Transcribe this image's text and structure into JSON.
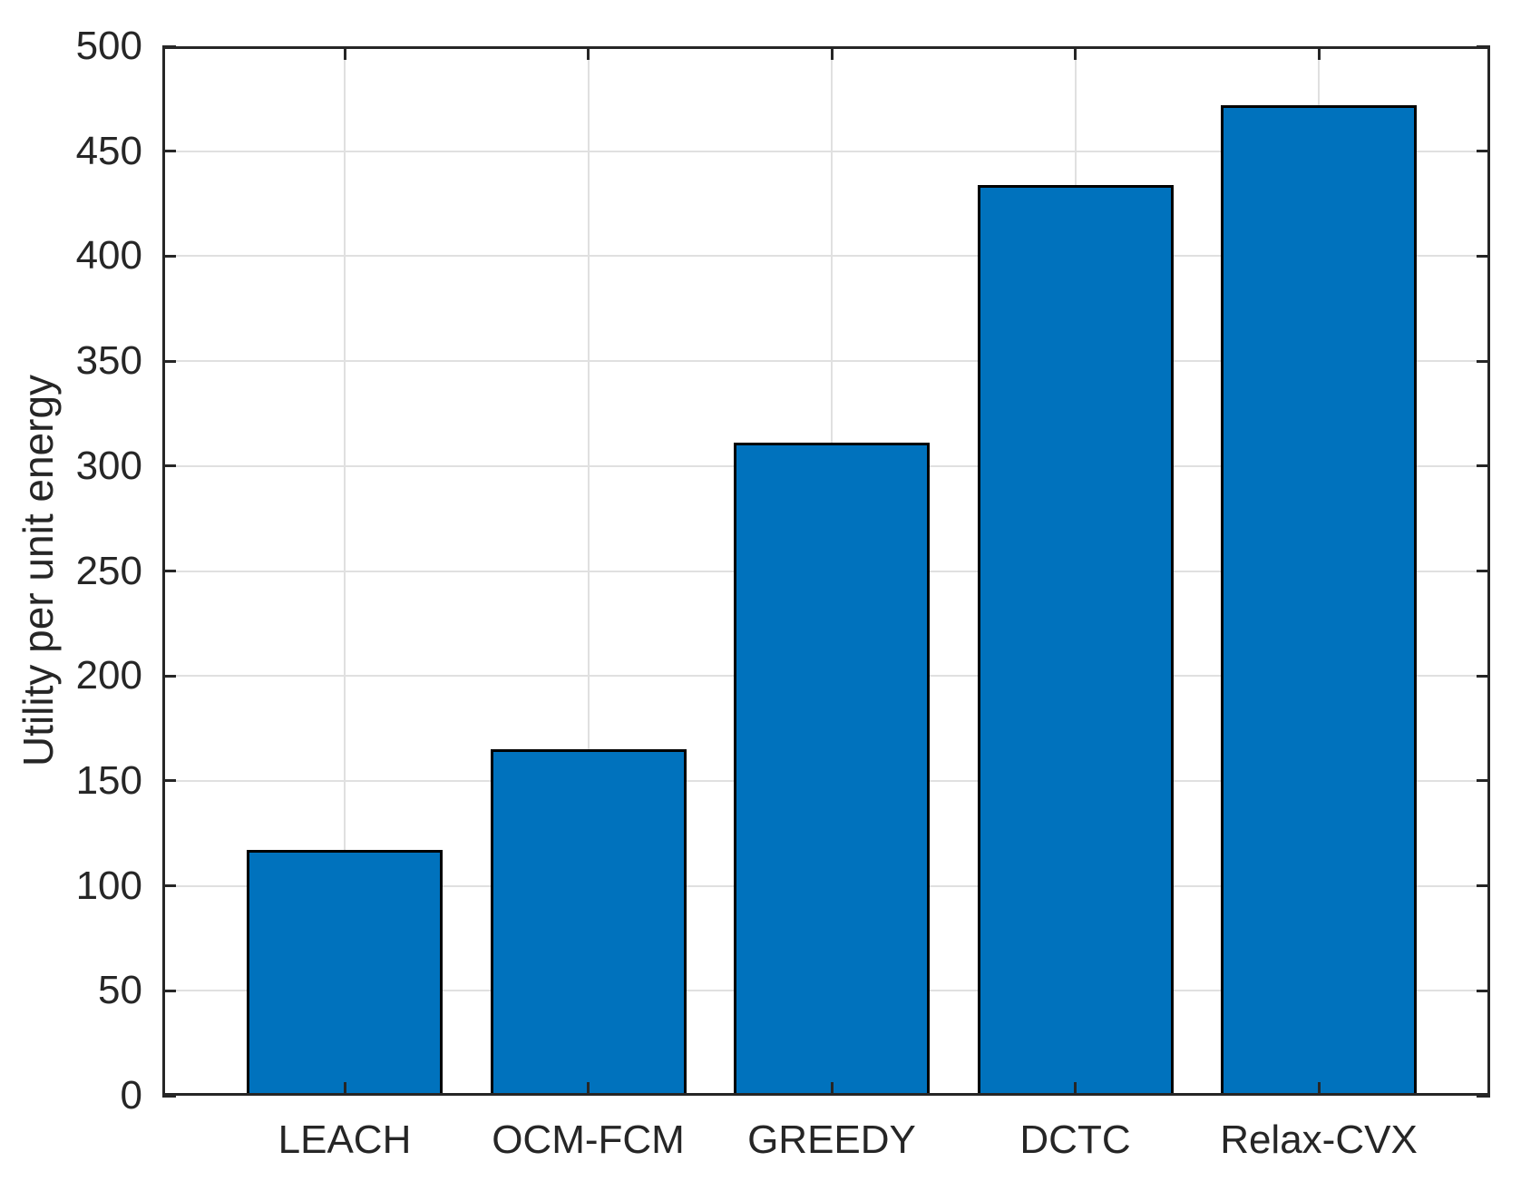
{
  "chart_data": {
    "type": "bar",
    "categories": [
      "LEACH",
      "OCM-FCM",
      "GREEDY",
      "DCTC",
      "Relax-CVX"
    ],
    "values": [
      117,
      165,
      311,
      434,
      472
    ],
    "title": "",
    "xlabel": "",
    "ylabel": "Utility per unit energy",
    "ylim": [
      0,
      500
    ],
    "ytick_step": 50,
    "yticks": [
      0,
      50,
      100,
      150,
      200,
      250,
      300,
      350,
      400,
      450,
      500
    ],
    "grid": "on",
    "legend": "none",
    "colors": {
      "bar_fill": "#0072BD",
      "bar_edge": "#000000",
      "axis": "#262626",
      "grid": "#E0E0E0",
      "text": "#262626",
      "background": "#FFFFFF"
    }
  }
}
